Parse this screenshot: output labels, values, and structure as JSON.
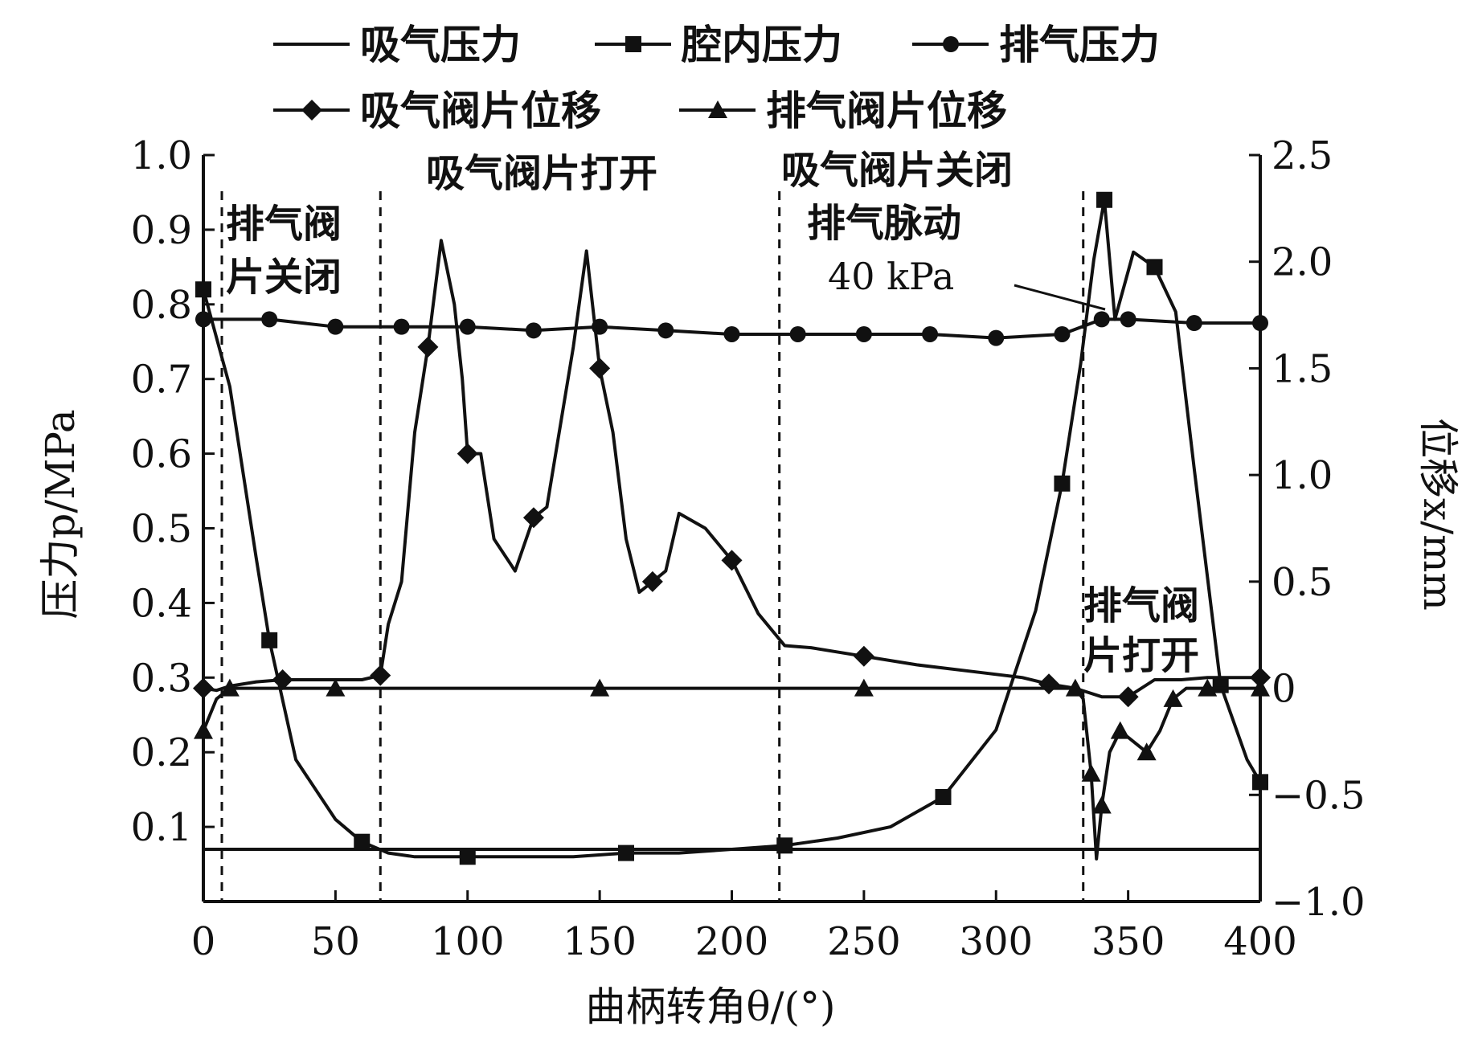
{
  "chart_data": {
    "type": "line",
    "title": "",
    "xlabel": "曲柄转角θ/(°)",
    "ylabel_left": "压力p/MPa",
    "ylabel_right": "位移x/mm",
    "xlim": [
      0,
      400
    ],
    "ylim_left": [
      0,
      1.0
    ],
    "ylim_right": [
      -1.0,
      2.5
    ],
    "x_ticks": [
      "0",
      "50",
      "100",
      "150",
      "200",
      "250",
      "300",
      "350",
      "400"
    ],
    "y_left_ticks": [
      "0.1",
      "0.2",
      "0.3",
      "0.4",
      "0.5",
      "0.6",
      "0.7",
      "0.8",
      "0.9",
      "1.0"
    ],
    "y_right_ticks": [
      "−1.0",
      "−0.5",
      "0",
      "0.5",
      "1.0",
      "1.5",
      "2.0",
      "2.5"
    ],
    "grid": false,
    "legend_position": "top",
    "legend_labels": [
      "吸气压力",
      "腔内压力",
      "排气压力",
      "吸气阀片位移",
      "排气阀片位移"
    ],
    "series": [
      {
        "name": "吸气压力",
        "axis": "left",
        "marker": "none",
        "x": [
          0,
          50,
          100,
          150,
          200,
          250,
          300,
          350,
          400
        ],
        "y": [
          0.07,
          0.07,
          0.07,
          0.07,
          0.07,
          0.07,
          0.07,
          0.07,
          0.07
        ]
      },
      {
        "name": "腔内压力",
        "axis": "left",
        "marker": "square",
        "x": [
          0,
          10,
          20,
          25,
          35,
          50,
          60,
          70,
          80,
          100,
          120,
          140,
          160,
          180,
          200,
          220,
          240,
          260,
          280,
          300,
          315,
          325,
          332,
          337,
          341,
          345,
          352,
          360,
          368,
          375,
          385,
          395,
          400
        ],
        "y": [
          0.82,
          0.69,
          0.46,
          0.35,
          0.19,
          0.11,
          0.08,
          0.065,
          0.06,
          0.06,
          0.06,
          0.06,
          0.065,
          0.065,
          0.07,
          0.075,
          0.085,
          0.1,
          0.14,
          0.23,
          0.39,
          0.56,
          0.72,
          0.86,
          0.94,
          0.78,
          0.87,
          0.85,
          0.79,
          0.58,
          0.29,
          0.19,
          0.16
        ]
      },
      {
        "name": "排气压力",
        "axis": "left",
        "marker": "circle",
        "x": [
          0,
          25,
          50,
          75,
          100,
          125,
          150,
          175,
          200,
          225,
          250,
          275,
          300,
          325,
          340,
          350,
          375,
          400
        ],
        "y": [
          0.78,
          0.78,
          0.77,
          0.77,
          0.77,
          0.765,
          0.77,
          0.765,
          0.76,
          0.76,
          0.76,
          0.76,
          0.755,
          0.76,
          0.78,
          0.78,
          0.775,
          0.775
        ]
      },
      {
        "name": "吸气阀片位移",
        "axis": "right",
        "marker": "diamond",
        "x": [
          0,
          5,
          10,
          20,
          30,
          40,
          50,
          60,
          67,
          70,
          75,
          80,
          85,
          90,
          95,
          98,
          100,
          105,
          110,
          118,
          125,
          130,
          140,
          145,
          150,
          155,
          160,
          165,
          170,
          175,
          180,
          190,
          200,
          210,
          220,
          230,
          250,
          270,
          290,
          310,
          320,
          330,
          335,
          340,
          350,
          360,
          370,
          380,
          400
        ],
        "y": [
          0,
          -0.01,
          0.01,
          0.03,
          0.04,
          0.04,
          0.04,
          0.04,
          0.06,
          0.3,
          0.5,
          1.2,
          1.6,
          2.1,
          1.8,
          1.45,
          1.1,
          1.1,
          0.7,
          0.55,
          0.8,
          0.85,
          1.6,
          2.05,
          1.5,
          1.2,
          0.7,
          0.45,
          0.5,
          0.55,
          0.82,
          0.75,
          0.6,
          0.35,
          0.2,
          0.19,
          0.15,
          0.11,
          0.08,
          0.05,
          0.02,
          0,
          -0.02,
          -0.04,
          -0.04,
          0.04,
          0.04,
          0.05,
          0.05
        ]
      },
      {
        "name": "排气阀片位移",
        "axis": "right",
        "marker": "triangle",
        "x": [
          0,
          5,
          10,
          20,
          50,
          100,
          150,
          200,
          250,
          300,
          330,
          333,
          336,
          338,
          340,
          343,
          347,
          352,
          357,
          362,
          367,
          372,
          380,
          400
        ],
        "y": [
          -0.2,
          -0.05,
          0,
          0,
          0,
          0,
          0,
          0,
          0,
          0,
          0,
          -0.05,
          -0.4,
          -0.8,
          -0.55,
          -0.3,
          -0.2,
          -0.25,
          -0.3,
          -0.2,
          -0.05,
          0,
          0,
          0
        ]
      }
    ],
    "annotations": [
      {
        "text_lines": [
          "排气阀",
          "片关闭"
        ],
        "region": "0-67"
      },
      {
        "text_lines": [
          "吸气阀片打开"
        ],
        "region": "67-218"
      },
      {
        "text_lines": [
          "吸气阀片关闭",
          "排气脉动"
        ],
        "region": "218-333"
      },
      {
        "text_lines": [
          "排气阀",
          "片打开"
        ],
        "region": "333-400"
      },
      {
        "text_lines": [
          "40 kPa"
        ],
        "region": "near 335"
      }
    ],
    "vertical_dashed_lines_x": [
      7,
      67,
      218,
      333
    ]
  }
}
